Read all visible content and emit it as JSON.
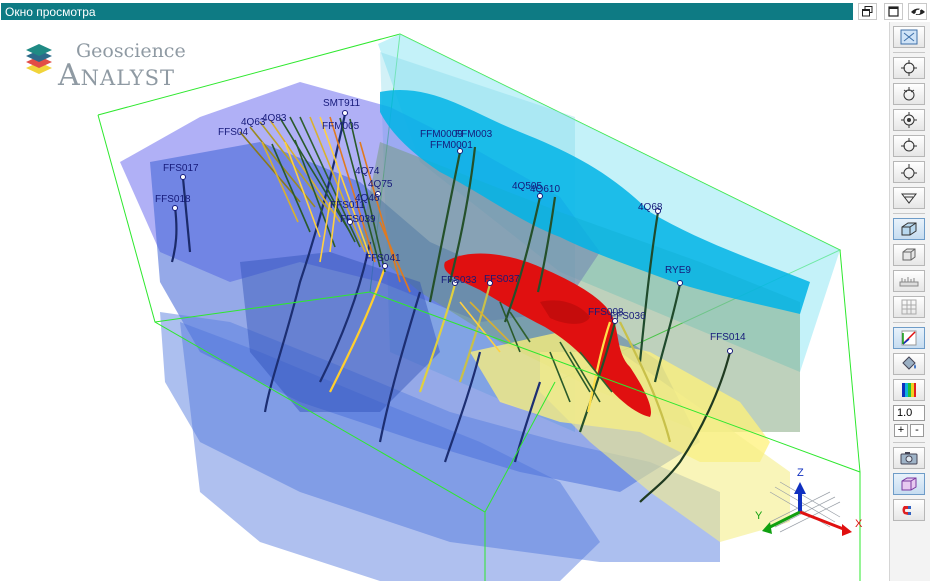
{
  "window": {
    "title": "Окно просмотра",
    "buttons": [
      "restore-icon",
      "maximize-icon",
      "toggle-visibility-icon"
    ]
  },
  "logo": {
    "line1": "Geoscience",
    "line2": "Analyst"
  },
  "toolbar": {
    "items": [
      {
        "name": "zoom-extents-icon",
        "active": false
      },
      {
        "name": "view-top-icon",
        "active": false
      },
      {
        "name": "view-bottom-icon",
        "active": false
      },
      {
        "name": "view-front-icon",
        "active": false
      },
      {
        "name": "view-side-icon",
        "active": false
      },
      {
        "name": "view-iso-icon",
        "active": false
      },
      {
        "name": "view-down-icon",
        "active": false
      },
      {
        "name": "perspective-box-icon",
        "active": true
      },
      {
        "name": "orthographic-box-icon",
        "active": false
      },
      {
        "name": "ruler-icon",
        "active": false
      },
      {
        "name": "grid-icon",
        "active": false
      },
      {
        "name": "axes-icon",
        "active": true
      },
      {
        "name": "paint-bucket-icon",
        "active": false
      },
      {
        "name": "color-bar-icon",
        "active": false
      },
      {
        "name": "camera-icon",
        "active": false
      },
      {
        "name": "clip-box-icon",
        "active": true
      },
      {
        "name": "magnet-icon",
        "active": false
      }
    ],
    "zoom_value": "1.0",
    "plus": "+",
    "minus": "-"
  },
  "colors": {
    "title_bar": "#0e7b84",
    "bounding_box": "#2ee82e",
    "label": "#161a7a",
    "orebody": "#e01010",
    "surface_cyan": "#00b4e6",
    "layer_blue": "#3e63d6",
    "layer_yellow": "#fff27a"
  },
  "axes": {
    "x": "X",
    "y": "Y",
    "z": "Z"
  },
  "labels": [
    {
      "text": "SMT911"
    },
    {
      "text": "4Q83"
    },
    {
      "text": "4Q63"
    },
    {
      "text": "FFS04"
    },
    {
      "text": "FFS017"
    },
    {
      "text": "FFS018"
    },
    {
      "text": "FFM005"
    },
    {
      "text": "FFM0009"
    },
    {
      "text": "FFM003"
    },
    {
      "text": "FFM0001"
    },
    {
      "text": "4Q74"
    },
    {
      "text": "4Q75"
    },
    {
      "text": "4Q46"
    },
    {
      "text": "FFS011"
    },
    {
      "text": "FFS039"
    },
    {
      "text": "FFS041"
    },
    {
      "text": "4Q505"
    },
    {
      "text": "4Q610"
    },
    {
      "text": "4Q68"
    },
    {
      "text": "FFS033"
    },
    {
      "text": "FFS037"
    },
    {
      "text": "RYE9"
    },
    {
      "text": "FFS036"
    },
    {
      "text": "FFS014"
    },
    {
      "text": "FFS008"
    }
  ]
}
